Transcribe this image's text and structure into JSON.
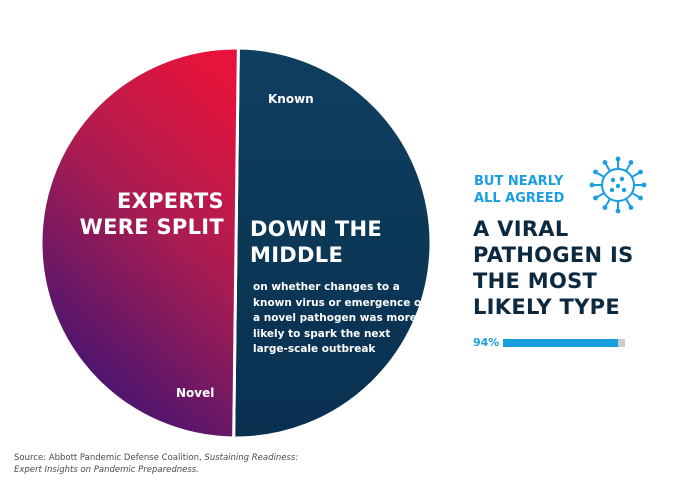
{
  "chart_data": {
    "type": "pie",
    "slices": [
      {
        "label": "Known",
        "value": 50,
        "color": "#0b3a5b"
      },
      {
        "label": "Novel",
        "value": 50,
        "color": "#c2123e"
      }
    ]
  },
  "headline_left": [
    "EXPERTS",
    "WERE SPLIT"
  ],
  "headline_right": [
    "DOWN THE",
    "MIDDLE"
  ],
  "description": "on whether changes to a known virus or emergence of a novel pathogen was more likely to spark the next large-scale outbreak",
  "side": {
    "kicker": [
      "BUT NEARLY",
      "ALL AGREED"
    ],
    "headline": [
      "A VIRAL",
      "PATHOGEN IS",
      "THE MOST",
      "LIKELY TYPE"
    ],
    "percent_label": "94%",
    "percent_value": 94,
    "icon": "virus-icon",
    "accent_color": "#1a9ee0",
    "dark_color": "#0c2940"
  },
  "source": {
    "prefix": "Source: Abbott Pandemic Defense Coalition, ",
    "title_line1": "Sustaining Readiness:",
    "title_line2": "Expert Insights on Pandemic Preparedness."
  }
}
